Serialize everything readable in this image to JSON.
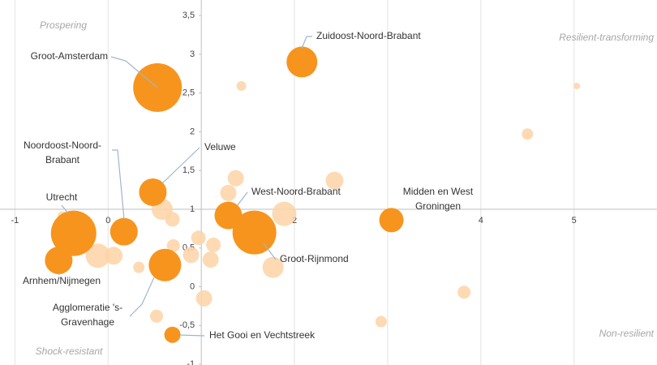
{
  "chart_data": {
    "type": "scatter",
    "quadrant_labels": [
      "Prospering",
      "Resilient-transforming",
      "Shock-resistant",
      "Non-resilient"
    ],
    "xlim": [
      -1.16,
      5.89
    ],
    "ylim": [
      -1.01,
      3.7
    ],
    "axes_cross_at": [
      1,
      1
    ],
    "xticks": [
      -1,
      0,
      2,
      3,
      4,
      5
    ],
    "yticks": [
      {
        "value": 3.5,
        "label": "3,5"
      },
      3,
      {
        "value": 2.5,
        "label": "2,5"
      },
      2,
      {
        "value": 1.5,
        "label": "1,5"
      },
      1,
      {
        "value": 0.5,
        "label": "0,5"
      },
      0,
      {
        "value": -0.5,
        "label": "-0,5"
      },
      -1
    ],
    "grid": true,
    "series": [
      {
        "color": "#f7941d",
        "labels": [
          [
            "Groot-Amsterdam"
          ],
          [
            "Zuidoost-Noord-Brabant"
          ],
          [
            "Veluwe"
          ],
          [
            "Noordoost-Noord-",
            "Brabant"
          ],
          [
            "Utrecht"
          ],
          [
            "Arnhem/Nijmegen"
          ],
          [
            "Agglomeratie 's-",
            "Gravenhage"
          ],
          [
            "West-Noord-Brabant"
          ],
          [
            "Groot-Rijnmond"
          ],
          [
            "Midden en West",
            "Groningen"
          ],
          [
            "Het Gooi en Vechtstreek"
          ]
        ],
        "x": [
          0.53,
          2.08,
          0.48,
          0.17,
          -0.37,
          -0.53,
          0.61,
          1.29,
          1.57,
          3.04,
          0.69
        ],
        "values": [
          2.57,
          2.9,
          1.22,
          0.71,
          0.69,
          0.34,
          0.28,
          0.92,
          0.7,
          0.86,
          -0.62
        ],
        "sizes": [
          900,
          361,
          289,
          289,
          784,
          289,
          400,
          289,
          729,
          225,
          100
        ]
      },
      {
        "color": "#fdd3a6",
        "x": [
          1.43,
          5.03,
          4.5,
          1.37,
          2.43,
          1.29,
          1.89,
          0.58,
          0.69,
          0.97,
          1.13,
          1.1,
          0.89,
          0.7,
          -0.11,
          0.06,
          0.33,
          1.77,
          1.03,
          0.52,
          3.82,
          2.93,
          -0.49
        ],
        "values": [
          2.59,
          2.59,
          1.97,
          1.4,
          1.37,
          1.21,
          0.94,
          1.0,
          0.87,
          0.63,
          0.54,
          0.35,
          0.41,
          0.53,
          0.4,
          0.4,
          0.25,
          0.25,
          -0.15,
          -0.38,
          -0.07,
          -0.45,
          0.91
        ],
        "sizes": [
          36,
          16,
          49,
          100,
          121,
          100,
          225,
          169,
          81,
          81,
          81,
          100,
          100,
          64,
          225,
          121,
          49,
          169,
          100,
          64,
          64,
          49,
          36
        ]
      }
    ]
  }
}
